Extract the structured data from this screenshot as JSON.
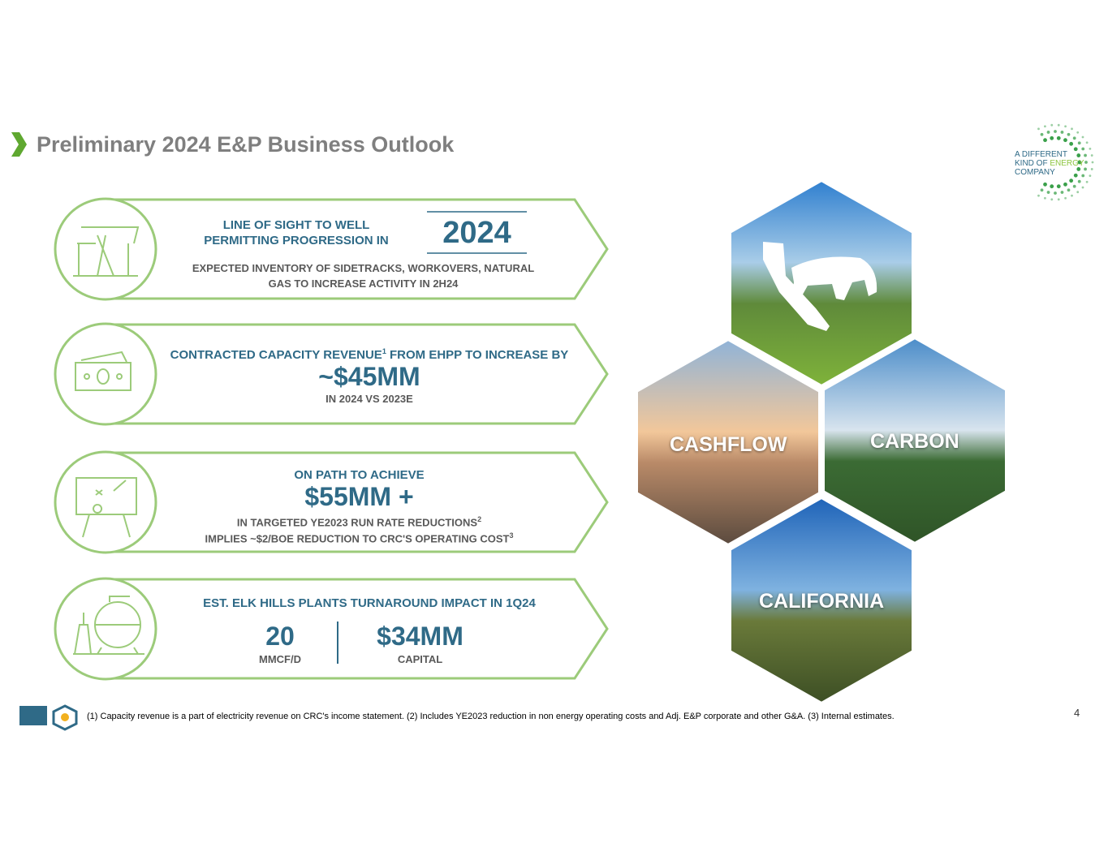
{
  "header": {
    "title": "Preliminary 2024 E&P Business Outlook"
  },
  "logo": {
    "line1": "A DIFFERENT",
    "line2a": "KIND OF ",
    "line2b": "ENERGY",
    "line3": "COMPANY"
  },
  "cards": [
    {
      "line1": "LINE OF SIGHT TO WELL",
      "line2": "PERMITTING PROGRESSION IN",
      "highlight": "2024",
      "detail1": "EXPECTED INVENTORY OF SIDETRACKS, WORKOVERS, NATURAL",
      "detail2": "GAS TO INCREASE ACTIVITY IN 2H24"
    },
    {
      "heading": "CONTRACTED CAPACITY REVENUE",
      "heading_sup": "1",
      "heading_rest": " FROM EHPP TO INCREASE BY",
      "big": "~$45MM",
      "sub": "IN 2024 VS 2023E"
    },
    {
      "heading": "ON PATH TO ACHIEVE",
      "big": "$55MM +",
      "sub1": "IN TARGETED YE2023 RUN RATE REDUCTIONS",
      "sub1_sup": "2",
      "sub2": "IMPLIES ~$2/BOE REDUCTION TO CRC'S OPERATING COST",
      "sub2_sup": "3"
    },
    {
      "heading": "EST. ELK HILLS PLANTS TURNAROUND IMPACT IN 1Q24",
      "stat1": "20",
      "stat1_label": "MMCF/D",
      "stat2": "$34MM",
      "stat2_label": "CAPITAL"
    }
  ],
  "hexagons": {
    "left": "CASHFLOW",
    "right": "CARBON",
    "bottom": "CALIFORNIA"
  },
  "footnote": "(1) Capacity revenue is a part of electricity revenue on CRC's income statement. (2) Includes YE2023 reduction in non energy operating costs and Adj. E&P corporate and other G&A. (3) Internal estimates.",
  "page_number": "4"
}
